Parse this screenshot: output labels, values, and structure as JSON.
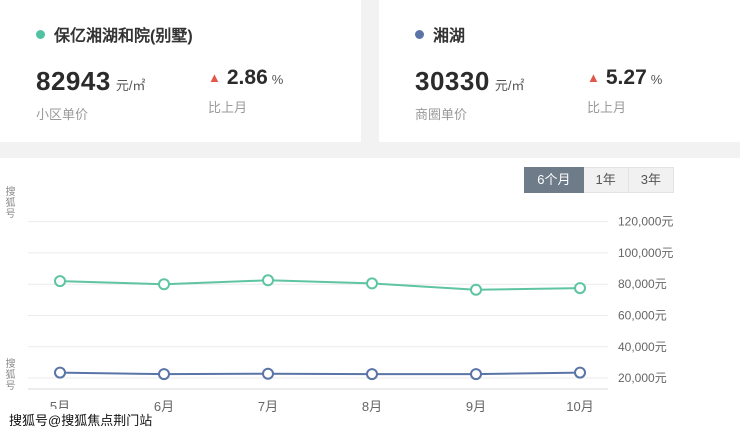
{
  "watermark": {
    "side_top": "搜狐号",
    "side_mid": "搜狐号",
    "bottom": "搜狐号@搜狐焦点荆门站"
  },
  "stats": {
    "left": {
      "name": "保亿湘湖和院(别墅)",
      "dot_color": "#52c0a2",
      "price": "82943",
      "unit": "元/㎡",
      "price_label": "小区单价",
      "change": "2.86",
      "change_unit": "%",
      "change_label": "比上月"
    },
    "right": {
      "name": "湘湖",
      "dot_color": "#5b74a8",
      "price": "30330",
      "unit": "元/㎡",
      "price_label": "商圈单价",
      "change": "5.27",
      "change_unit": "%",
      "change_label": "比上月"
    }
  },
  "tabs": [
    {
      "label": "6个月",
      "active": true
    },
    {
      "label": "1年",
      "active": false
    },
    {
      "label": "3年",
      "active": false
    }
  ],
  "chart_data": {
    "type": "line",
    "categories": [
      "5月",
      "6月",
      "7月",
      "8月",
      "9月",
      "10月"
    ],
    "series": [
      {
        "name": "保亿湘湖和院(别墅)",
        "color": "#5fc4a2",
        "values": [
          82000,
          80000,
          82500,
          80500,
          76500,
          77500
        ]
      },
      {
        "name": "湘湖",
        "color": "#5b74a8",
        "values": [
          23500,
          22500,
          22800,
          22500,
          22500,
          23500
        ]
      }
    ],
    "y_ticks": [
      "120,000元",
      "100,000元",
      "80,000元",
      "60,000元",
      "40,000元",
      "20,000元"
    ],
    "y_tick_values": [
      120000,
      100000,
      80000,
      60000,
      40000,
      20000
    ],
    "ylim": [
      13000,
      130000
    ],
    "grid": true,
    "y_axis_side": "right",
    "legend_position": "none"
  }
}
